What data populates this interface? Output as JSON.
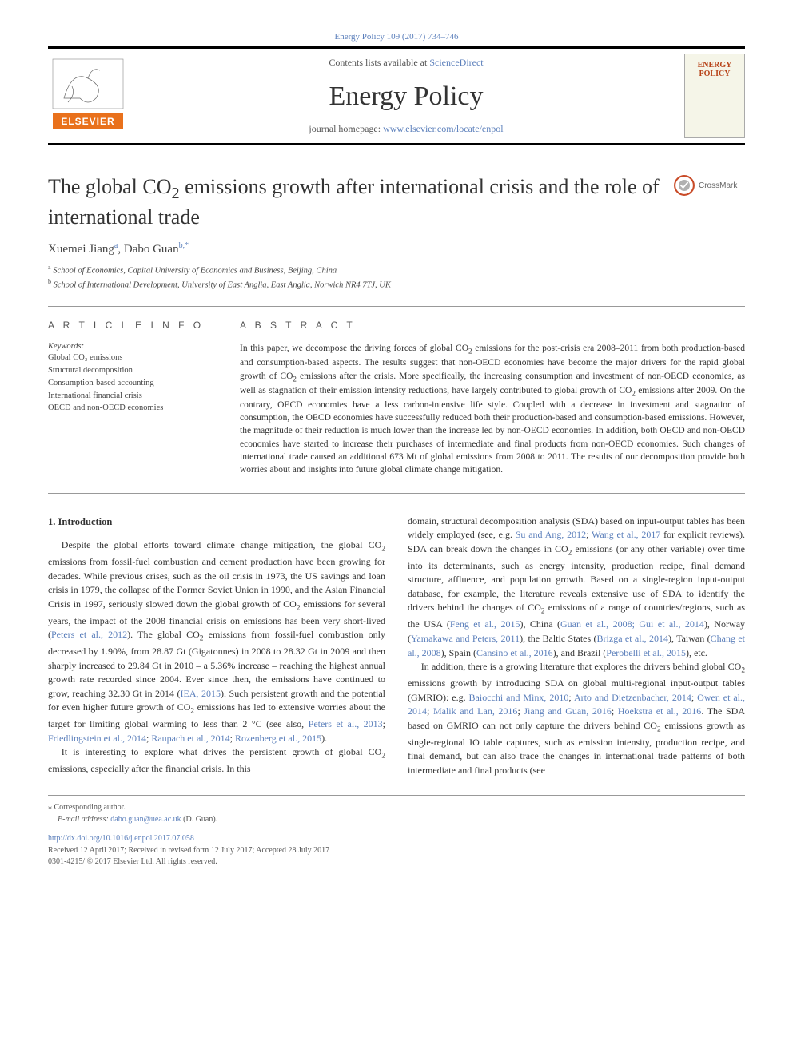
{
  "journal_ref": {
    "text": "Energy Policy 109 (2017) 734–746",
    "link_color": "#5b7fbb"
  },
  "header": {
    "contents_prefix": "Contents lists available at ",
    "contents_link": "ScienceDirect",
    "journal_name": "Energy Policy",
    "homepage_prefix": "journal homepage: ",
    "homepage_link": "www.elsevier.com/locate/enpol",
    "publisher_logo_label": "ELSEVIER",
    "cover_title": "ENERGY POLICY"
  },
  "crossmark_label": "CrossMark",
  "article": {
    "title_html": "The global CO<sub class=\"sub\">2</sub> emissions growth after international crisis and the role of international trade",
    "authors_html": "Xuemei Jiang<span class=\"sup\">a</span>, Dabo Guan<span class=\"sup\">b,</span><span class=\"sup\">*</span>",
    "affiliations": [
      {
        "sup": "a",
        "text": "School of Economics, Capital University of Economics and Business, Beijing, China"
      },
      {
        "sup": "b",
        "text": "School of International Development, University of East Anglia, East Anglia, Norwich NR4 7TJ, UK"
      }
    ]
  },
  "info": {
    "label": "A R T I C L E   I N F O",
    "keywords_label": "Keywords:",
    "keywords": [
      "Global CO₂ emissions",
      "Structural decomposition",
      "Consumption-based accounting",
      "International financial crisis",
      "OECD and non-OECD economies"
    ]
  },
  "abstract": {
    "label": "A B S T R A C T",
    "text_html": "In this paper, we decompose the driving forces of global CO<sub class=\"sub\">2</sub> emissions for the post-crisis era 2008–2011 from both production-based and consumption-based aspects. The results suggest that non-OECD economies have become the major drivers for the rapid global growth of CO<sub class=\"sub\">2</sub> emissions after the crisis. More specifically, the increasing consumption and investment of non-OECD economies, as well as stagnation of their emission intensity reductions, have largely contributed to global growth of CO<sub class=\"sub\">2</sub> emissions after 2009. On the contrary, OECD economies have a less carbon-intensive life style. Coupled with a decrease in investment and stagnation of consumption, the OECD economies have successfully reduced both their production-based and consumption-based emissions. However, the magnitude of their reduction is much lower than the increase led by non-OECD economies. In addition, both OECD and non-OECD economies have started to increase their purchases of intermediate and final products from non-OECD economies. Such changes of international trade caused an additional 673 Mt of global emissions from 2008 to 2011. The results of our decomposition provide both worries about and insights into future global climate change mitigation."
  },
  "body": {
    "section_heading": "1. Introduction",
    "col1_html": "Despite the global efforts toward climate change mitigation, the global CO<sub class=\"sub\">2</sub> emissions from fossil-fuel combustion and cement production have been growing for decades. While previous crises, such as the oil crisis in 1973, the US savings and loan crisis in 1979, the collapse of the Former Soviet Union in 1990, and the Asian Financial Crisis in 1997, seriously slowed down the global growth of CO<sub class=\"sub\">2</sub> emissions for several years, the impact of the 2008 financial crisis on emissions has been very short-lived (<a href=\"#\">Peters et al., 2012</a>). The global CO<sub class=\"sub\">2</sub> emissions from fossil-fuel combustion only decreased by 1.90%, from 28.87 Gt (Gigatonnes) in 2008 to 28.32 Gt in 2009 and then sharply increased to 29.84 Gt in 2010 – a 5.36% increase – reaching the highest annual growth rate recorded since 2004. Ever since then, the emissions have continued to grow, reaching 32.30 Gt in 2014 (<a href=\"#\">IEA, 2015</a>). Such persistent growth and the potential for even higher future growth of CO<sub class=\"sub\">2</sub> emissions has led to extensive worries about the target for limiting global warming to less than 2 °C (see also, <a href=\"#\">Peters et al., 2013</a>; <a href=\"#\">Friedlingstein et al., 2014</a>; <a href=\"#\">Raupach et al., 2014</a>; <a href=\"#\">Rozenberg et al., 2015</a>).</p><p data-name=\"body-paragraph\" data-interactable=\"false\">It is interesting to explore what drives the persistent growth of global CO<sub class=\"sub\">2</sub> emissions, especially after the financial crisis. In this",
    "col2_html": "domain, structural decomposition analysis (SDA) based on input-output tables has been widely employed (see, e.g. <a href=\"#\">Su and Ang, 2012</a>; <a href=\"#\">Wang et al., 2017</a> for explicit reviews). SDA can break down the changes in CO<sub class=\"sub\">2</sub> emissions (or any other variable) over time into its determinants, such as energy intensity, production recipe, final demand structure, affluence, and population growth. Based on a single-region input-output database, for example, the literature reveals extensive use of SDA to identify the drivers behind the changes of CO<sub class=\"sub\">2</sub> emissions of a range of countries/regions, such as the USA (<a href=\"#\">Feng et al., 2015</a>), China (<a href=\"#\">Guan et al., 2008; Gui et al., 2014</a>), Norway (<a href=\"#\">Yamakawa and Peters, 2011</a>), the Baltic States (<a href=\"#\">Brizga et al., 2014</a>), Taiwan (<a href=\"#\">Chang et al., 2008</a>), Spain (<a href=\"#\">Cansino et al., 2016</a>), and Brazil (<a href=\"#\">Perobelli et al., 2015</a>), etc.</p><p data-name=\"body-paragraph\" data-interactable=\"false\">In addition, there is a growing literature that explores the drivers behind global CO<sub class=\"sub\">2</sub> emissions growth by introducing SDA on global multi-regional input-output tables (GMRIO): e.g. <a href=\"#\">Baiocchi and Minx, 2010</a>; <a href=\"#\">Arto and Dietzenbacher, 2014</a>; <a href=\"#\">Owen et al., 2014</a>; <a href=\"#\">Malik and Lan, 2016</a>; <a href=\"#\">Jiang and Guan, 2016</a>; <a href=\"#\">Hoekstra et al., 2016</a>. The SDA based on GMRIO can not only capture the drivers behind CO<sub class=\"sub\">2</sub> emissions growth as single-regional IO table captures, such as emission intensity, production recipe, and final demand, but can also trace the changes in international trade patterns of both intermediate and final products (see"
  },
  "footer": {
    "corresponding": "Corresponding author.",
    "email_label": "E-mail address:",
    "email": "dabo.guan@uea.ac.uk",
    "email_paren": "(D. Guan).",
    "doi": "http://dx.doi.org/10.1016/j.enpol.2017.07.058",
    "received": "Received 12 April 2017; Received in revised form 12 July 2017; Accepted 28 July 2017",
    "copyright": "0301-4215/ © 2017 Elsevier Ltd. All rights reserved."
  },
  "colors": {
    "link": "#5b7fbb",
    "text": "#333333",
    "rule": "#999999",
    "elsevier_orange": "#e9711c",
    "crossmark_ring": "#c94b28"
  }
}
